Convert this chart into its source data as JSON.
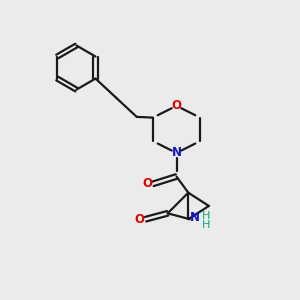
{
  "background_color": "#ebebeb",
  "line_color": "#1a1a1a",
  "O_color": "#e00000",
  "N_color": "#1414cc",
  "H_color": "#00aa88",
  "line_width": 1.6,
  "figsize": [
    3.0,
    3.0
  ],
  "dpi": 100,
  "xlim": [
    0,
    10
  ],
  "ylim": [
    0,
    10
  ]
}
